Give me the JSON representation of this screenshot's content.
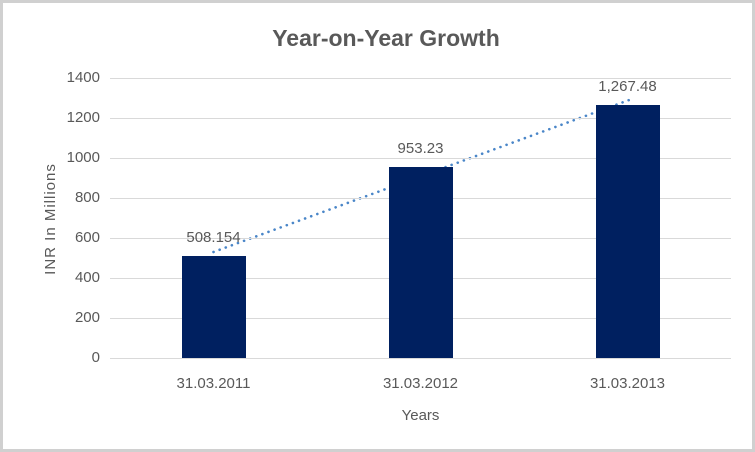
{
  "frame": {
    "background": "#ffffff",
    "border_color": "#d0d0d0",
    "text_color": "#595959",
    "grid_color": "#d9d9d9"
  },
  "chart_data": {
    "type": "bar",
    "title": "Year-on-Year Growth",
    "xlabel": "Years",
    "ylabel": "INR In Millions",
    "categories": [
      "31.03.2011",
      "31.03.2012",
      "31.03.2013"
    ],
    "values": [
      508.154,
      953.23,
      1267.48
    ],
    "value_labels": [
      "508.154",
      "953.23",
      "1,267.48"
    ],
    "ylim": [
      0,
      1400
    ],
    "ytick_step": 200,
    "ytick_labels": [
      "0",
      "200",
      "400",
      "600",
      "800",
      "1000",
      "1200",
      "1400"
    ],
    "grid": true,
    "legend_position": "none",
    "bar_color": "#002060",
    "trendline": {
      "type": "linear",
      "style": "dotted",
      "color": "#4a86c8",
      "start_value": 530,
      "end_value": 1289.3
    }
  }
}
